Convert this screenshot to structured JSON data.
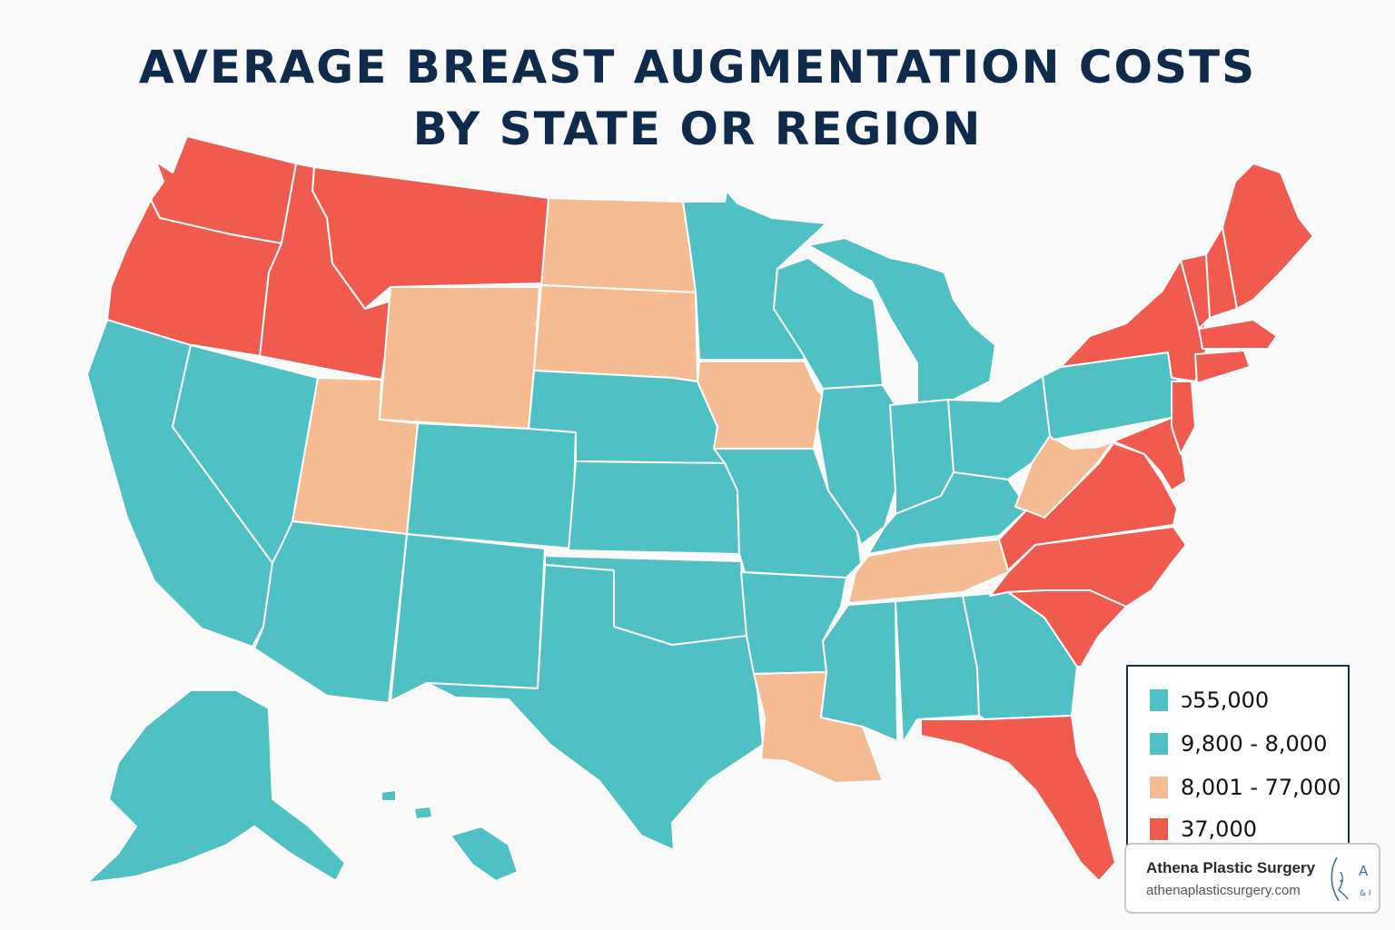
{
  "title": {
    "line1": "AVERAGE BREAST AUGMENTATION COSTS",
    "line2": "BY STATE OR REGION"
  },
  "colors": {
    "teal": "#4fc0c4",
    "peach": "#f5bc94",
    "red": "#f05a4f",
    "title": "#0f2a4a"
  },
  "legend": {
    "items": [
      {
        "label": "ↄ55,000",
        "color": "#4fc0c4"
      },
      {
        "label": "9,800 - 8,000",
        "color": "#4fc0c4"
      },
      {
        "label": "8,001 - 77,000",
        "color": "#f5bc94"
      },
      {
        "label": "37,000",
        "color": "#f05a4f"
      }
    ]
  },
  "brand": {
    "name": "Athena Plastic Surgery",
    "url": "athenaplasticsurgery.com",
    "logo_letters": "A",
    "logo_sub": "& I"
  }
}
